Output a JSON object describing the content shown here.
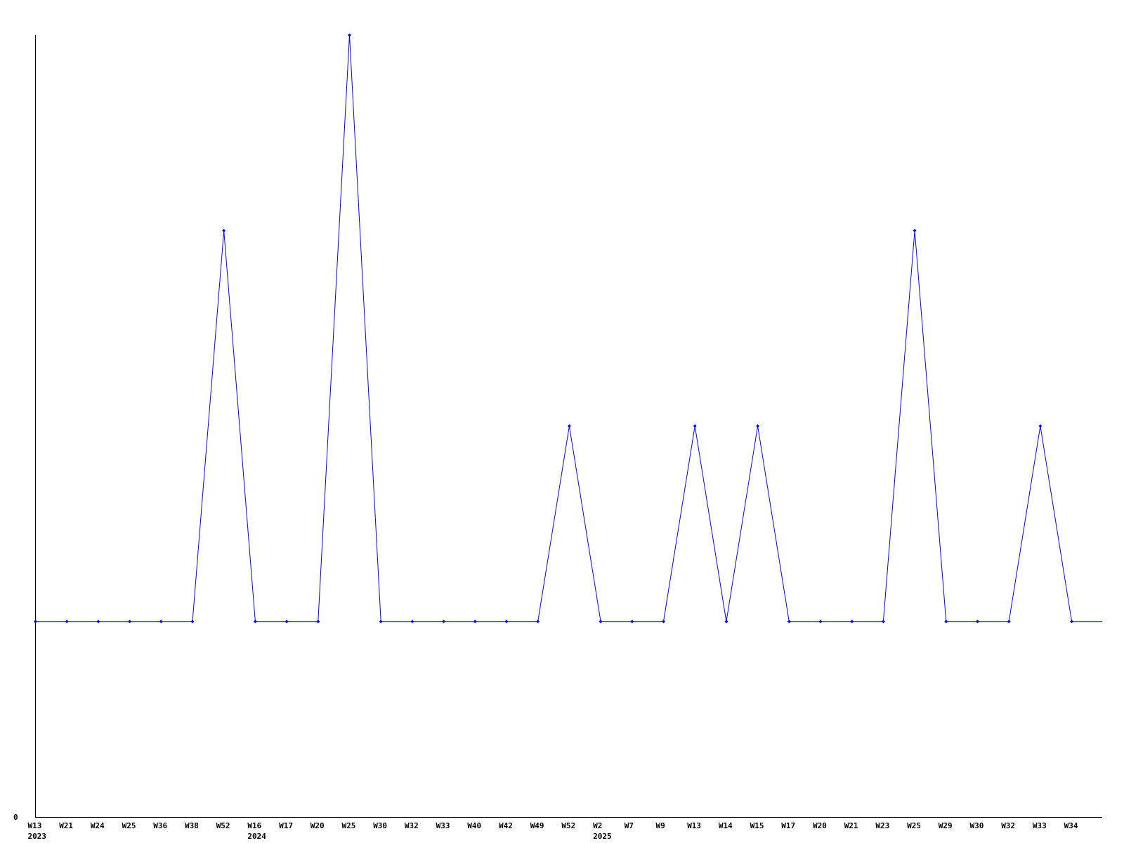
{
  "chart_data": {
    "type": "line",
    "title": "",
    "xlabel": "",
    "ylabel": "",
    "y_tick_labels": [
      "0"
    ],
    "ylim": [
      0,
      4
    ],
    "grid": false,
    "line_color": "#0000ff",
    "axis_color": "#000000",
    "categories": [
      "W13",
      "W21",
      "W24",
      "W25",
      "W36",
      "W38",
      "W52",
      "W16",
      "W17",
      "W20",
      "W25",
      "W30",
      "W32",
      "W33",
      "W40",
      "W42",
      "W49",
      "W52",
      "W2",
      "W7",
      "W9",
      "W13",
      "W14",
      "W15",
      "W17",
      "W20",
      "W21",
      "W23",
      "W25",
      "W29",
      "W30",
      "W32",
      "W33",
      "W34"
    ],
    "year_labels": [
      {
        "index": 0,
        "label": "2023"
      },
      {
        "index": 7,
        "label": "2024"
      },
      {
        "index": 18,
        "label": "2025"
      }
    ],
    "series": [
      {
        "values": [
          1,
          1,
          1,
          1,
          1,
          1,
          3,
          1,
          1,
          1,
          4,
          1,
          1,
          1,
          1,
          1,
          1,
          2,
          1,
          1,
          1,
          2,
          1,
          2,
          1,
          1,
          1,
          1,
          3,
          1,
          1,
          1,
          2,
          1
        ]
      }
    ],
    "line_extends_past_last_point_value": 1
  }
}
